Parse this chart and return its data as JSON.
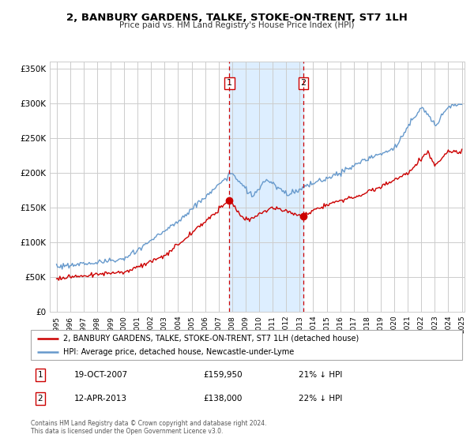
{
  "title": "2, BANBURY GARDENS, TALKE, STOKE-ON-TRENT, ST7 1LH",
  "subtitle": "Price paid vs. HM Land Registry's House Price Index (HPI)",
  "legend_line1": "2, BANBURY GARDENS, TALKE, STOKE-ON-TRENT, ST7 1LH (detached house)",
  "legend_line2": "HPI: Average price, detached house, Newcastle-under-Lyme",
  "annotation1_label": "1",
  "annotation1_date": "19-OCT-2007",
  "annotation1_price": "£159,950",
  "annotation1_hpi": "21% ↓ HPI",
  "annotation2_label": "2",
  "annotation2_date": "12-APR-2013",
  "annotation2_price": "£138,000",
  "annotation2_hpi": "22% ↓ HPI",
  "footer1": "Contains HM Land Registry data © Crown copyright and database right 2024.",
  "footer2": "This data is licensed under the Open Government Licence v3.0.",
  "red_color": "#cc0000",
  "blue_color": "#6699cc",
  "shade_color": "#ddeeff",
  "grid_color": "#cccccc",
  "vline_color": "#cc0000",
  "marker1_x": 2007.8,
  "marker1_y": 159950,
  "marker2_x": 2013.28,
  "marker2_y": 138000,
  "vline1_x": 2007.8,
  "vline2_x": 2013.28,
  "shade_x1": 2007.8,
  "shade_x2": 2013.28,
  "ylim": [
    0,
    360000
  ],
  "xlim": [
    1994.5,
    2025.2
  ],
  "yticks": [
    0,
    50000,
    100000,
    150000,
    200000,
    250000,
    300000,
    350000
  ],
  "ytick_labels": [
    "£0",
    "£50K",
    "£100K",
    "£150K",
    "£200K",
    "£250K",
    "£300K",
    "£350K"
  ],
  "xticks": [
    1995,
    1996,
    1997,
    1998,
    1999,
    2000,
    2001,
    2002,
    2003,
    2004,
    2005,
    2006,
    2007,
    2008,
    2009,
    2010,
    2011,
    2012,
    2013,
    2014,
    2015,
    2016,
    2017,
    2018,
    2019,
    2020,
    2021,
    2022,
    2023,
    2024,
    2025
  ]
}
